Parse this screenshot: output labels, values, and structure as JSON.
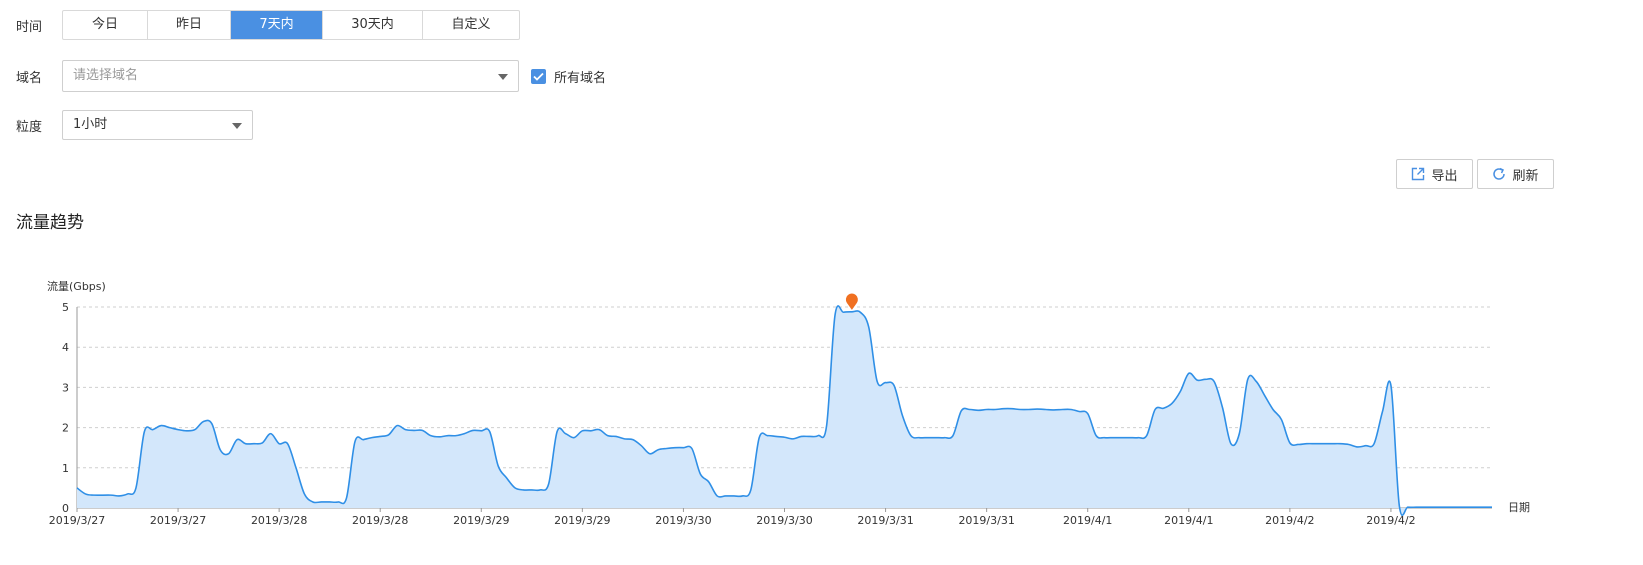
{
  "filters": {
    "time_label": "时间",
    "time_options": [
      "今日",
      "昨日",
      "7天内",
      "30天内",
      "自定义"
    ],
    "time_active": "7天内",
    "domain_label": "域名",
    "domain_placeholder": "请选择域名",
    "all_domains_label": "所有域名",
    "all_domains_checked": true,
    "granularity_label": "粒度",
    "granularity_value": "1小时"
  },
  "toolbar": {
    "export_label": "导出",
    "refresh_label": "刷新"
  },
  "section": {
    "title": "流量趋势"
  },
  "colors": {
    "accent": "#4a90e2",
    "line": "#2f8fe6",
    "fill": "#d3e7fb",
    "marker": "#f07021"
  },
  "chart_data": {
    "type": "area",
    "ylabel": "流量(Gbps)",
    "xlabel": "日期",
    "ylim": [
      0,
      5
    ],
    "yticks": [
      0,
      1,
      2,
      3,
      4,
      5
    ],
    "grid": true,
    "xticks": [
      "2019/3/27",
      "2019/3/27",
      "2019/3/28",
      "2019/3/28",
      "2019/3/29",
      "2019/3/29",
      "2019/3/30",
      "2019/3/30",
      "2019/3/31",
      "2019/3/31",
      "2019/4/1",
      "2019/4/1",
      "2019/4/2",
      "2019/4/2"
    ],
    "x_range_hours": [
      0,
      168
    ],
    "points": [
      [
        0,
        0.5
      ],
      [
        1,
        0.35
      ],
      [
        2,
        0.32
      ],
      [
        4,
        0.32
      ],
      [
        5,
        0.3
      ],
      [
        6,
        0.35
      ],
      [
        7,
        0.5
      ],
      [
        8,
        1.9
      ],
      [
        9,
        1.95
      ],
      [
        10,
        2.05
      ],
      [
        11,
        2.0
      ],
      [
        12,
        1.95
      ],
      [
        13,
        1.92
      ],
      [
        14,
        1.95
      ],
      [
        15,
        2.15
      ],
      [
        16,
        2.1
      ],
      [
        17,
        1.45
      ],
      [
        18,
        1.35
      ],
      [
        19,
        1.7
      ],
      [
        20,
        1.6
      ],
      [
        21,
        1.6
      ],
      [
        22,
        1.62
      ],
      [
        23,
        1.85
      ],
      [
        24,
        1.6
      ],
      [
        25,
        1.6
      ],
      [
        26,
        1.0
      ],
      [
        27,
        0.35
      ],
      [
        28,
        0.15
      ],
      [
        29,
        0.15
      ],
      [
        30,
        0.15
      ],
      [
        31,
        0.15
      ],
      [
        32,
        0.25
      ],
      [
        33,
        1.65
      ],
      [
        34,
        1.7
      ],
      [
        35,
        1.75
      ],
      [
        36,
        1.78
      ],
      [
        37,
        1.82
      ],
      [
        38,
        2.05
      ],
      [
        39,
        1.95
      ],
      [
        40,
        1.93
      ],
      [
        41,
        1.93
      ],
      [
        42,
        1.8
      ],
      [
        43,
        1.77
      ],
      [
        44,
        1.8
      ],
      [
        45,
        1.8
      ],
      [
        46,
        1.85
      ],
      [
        47,
        1.93
      ],
      [
        48,
        1.92
      ],
      [
        49,
        1.9
      ],
      [
        50,
        1.05
      ],
      [
        51,
        0.75
      ],
      [
        52,
        0.5
      ],
      [
        53,
        0.45
      ],
      [
        54,
        0.45
      ],
      [
        55,
        0.45
      ],
      [
        56,
        0.6
      ],
      [
        57,
        1.9
      ],
      [
        58,
        1.85
      ],
      [
        59,
        1.75
      ],
      [
        60,
        1.92
      ],
      [
        61,
        1.92
      ],
      [
        62,
        1.95
      ],
      [
        63,
        1.8
      ],
      [
        64,
        1.78
      ],
      [
        65,
        1.72
      ],
      [
        66,
        1.7
      ],
      [
        67,
        1.55
      ],
      [
        68,
        1.35
      ],
      [
        69,
        1.45
      ],
      [
        70,
        1.48
      ],
      [
        71,
        1.5
      ],
      [
        72,
        1.5
      ],
      [
        73,
        1.48
      ],
      [
        74,
        0.85
      ],
      [
        75,
        0.65
      ],
      [
        76,
        0.3
      ],
      [
        77,
        0.3
      ],
      [
        78,
        0.3
      ],
      [
        79,
        0.3
      ],
      [
        80,
        0.45
      ],
      [
        81,
        1.75
      ],
      [
        82,
        1.8
      ],
      [
        83,
        1.78
      ],
      [
        84,
        1.76
      ],
      [
        85,
        1.72
      ],
      [
        86,
        1.78
      ],
      [
        87,
        1.78
      ],
      [
        88,
        1.8
      ],
      [
        89,
        2.05
      ],
      [
        90,
        4.8
      ],
      [
        91,
        4.87
      ],
      [
        92,
        4.88
      ],
      [
        93,
        4.87
      ],
      [
        94,
        4.5
      ],
      [
        95,
        3.15
      ],
      [
        96,
        3.12
      ],
      [
        97,
        3.05
      ],
      [
        98,
        2.3
      ],
      [
        99,
        1.8
      ],
      [
        100,
        1.75
      ],
      [
        101,
        1.75
      ],
      [
        102,
        1.75
      ],
      [
        103,
        1.75
      ],
      [
        104,
        1.8
      ],
      [
        105,
        2.42
      ],
      [
        106,
        2.45
      ],
      [
        107,
        2.43
      ],
      [
        108,
        2.45
      ],
      [
        109,
        2.45
      ],
      [
        110,
        2.47
      ],
      [
        111,
        2.47
      ],
      [
        112,
        2.45
      ],
      [
        113,
        2.45
      ],
      [
        114,
        2.46
      ],
      [
        115,
        2.45
      ],
      [
        116,
        2.44
      ],
      [
        117,
        2.45
      ],
      [
        118,
        2.45
      ],
      [
        119,
        2.4
      ],
      [
        120,
        2.35
      ],
      [
        121,
        1.8
      ],
      [
        122,
        1.75
      ],
      [
        123,
        1.75
      ],
      [
        124,
        1.75
      ],
      [
        125,
        1.75
      ],
      [
        126,
        1.75
      ],
      [
        127,
        1.8
      ],
      [
        128,
        2.45
      ],
      [
        129,
        2.48
      ],
      [
        130,
        2.6
      ],
      [
        131,
        2.9
      ],
      [
        132,
        3.35
      ],
      [
        133,
        3.18
      ],
      [
        134,
        3.2
      ],
      [
        135,
        3.15
      ],
      [
        136,
        2.5
      ],
      [
        137,
        1.6
      ],
      [
        138,
        1.85
      ],
      [
        139,
        3.2
      ],
      [
        140,
        3.15
      ],
      [
        141,
        2.8
      ],
      [
        142,
        2.45
      ],
      [
        143,
        2.2
      ],
      [
        144,
        1.62
      ],
      [
        145,
        1.58
      ],
      [
        146,
        1.6
      ],
      [
        147,
        1.6
      ],
      [
        148,
        1.6
      ],
      [
        149,
        1.6
      ],
      [
        150,
        1.6
      ],
      [
        151,
        1.58
      ],
      [
        152,
        1.52
      ],
      [
        153,
        1.55
      ],
      [
        154,
        1.6
      ],
      [
        155,
        2.4
      ],
      [
        156,
        3.05
      ],
      [
        157,
        0.05
      ],
      [
        158,
        0.02
      ],
      [
        159,
        0.02
      ],
      [
        160,
        0.02
      ],
      [
        161,
        0.02
      ],
      [
        162,
        0.02
      ],
      [
        163,
        0.02
      ],
      [
        164,
        0.02
      ],
      [
        165,
        0.02
      ],
      [
        166,
        0.02
      ],
      [
        167,
        0.02
      ],
      [
        168,
        0.02
      ]
    ],
    "max_marker": {
      "x": 92,
      "y": 4.88
    }
  }
}
